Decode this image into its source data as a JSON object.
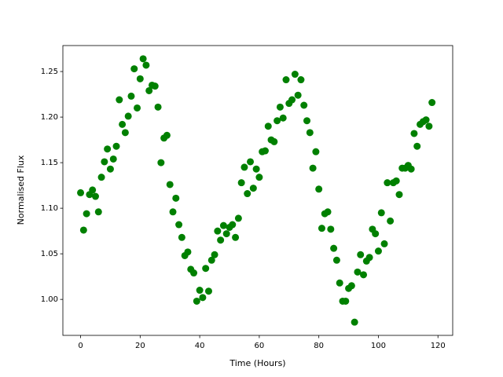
{
  "chart_data": {
    "type": "scatter",
    "xlabel": "Time (Hours)",
    "ylabel": "Normalised Flux",
    "color": "#008000",
    "x": [
      0,
      1,
      2,
      3,
      4,
      5,
      6,
      7,
      8,
      9,
      10,
      11,
      12,
      13,
      14,
      15,
      16,
      17,
      18,
      19,
      20,
      21,
      22,
      23,
      24,
      25,
      26,
      27,
      28,
      29,
      30,
      31,
      32,
      33,
      34,
      35,
      36,
      37,
      38,
      39,
      40,
      41,
      42,
      43,
      44,
      45,
      46,
      47,
      48,
      49,
      50,
      51,
      52,
      53,
      54,
      55,
      56,
      57,
      58,
      59,
      60,
      61,
      62,
      63,
      64,
      65,
      66,
      67,
      68,
      69,
      70,
      71,
      72,
      73,
      74,
      75,
      76,
      77,
      78,
      79,
      80,
      81,
      82,
      83,
      84,
      85,
      86,
      87,
      88,
      89,
      90,
      91,
      92,
      93,
      94,
      95,
      96,
      97,
      98,
      99,
      100,
      101,
      102,
      103,
      104,
      105,
      106,
      107,
      108,
      109,
      110,
      111,
      112,
      113,
      114,
      115,
      116,
      117,
      118
    ],
    "values": [
      1.117,
      1.076,
      1.094,
      1.115,
      1.12,
      1.113,
      1.096,
      1.134,
      1.151,
      1.165,
      1.143,
      1.154,
      1.168,
      1.219,
      1.192,
      1.183,
      1.201,
      1.223,
      1.253,
      1.21,
      1.242,
      1.264,
      1.257,
      1.229,
      1.235,
      1.234,
      1.211,
      1.15,
      1.177,
      1.18,
      1.126,
      1.096,
      1.111,
      1.082,
      1.068,
      1.048,
      1.052,
      1.033,
      1.029,
      0.998,
      1.01,
      1.002,
      1.034,
      1.009,
      1.043,
      1.049,
      1.075,
      1.065,
      1.081,
      1.072,
      1.079,
      1.082,
      1.068,
      1.089,
      1.128,
      1.145,
      1.116,
      1.151,
      1.122,
      1.143,
      1.134,
      1.162,
      1.163,
      1.19,
      1.175,
      1.173,
      1.196,
      1.211,
      1.199,
      1.241,
      1.215,
      1.219,
      1.247,
      1.224,
      1.241,
      1.213,
      1.196,
      1.183,
      1.144,
      1.162,
      1.121,
      1.078,
      1.094,
      1.096,
      1.077,
      1.056,
      1.043,
      1.018,
      0.998,
      0.998,
      1.012,
      1.015,
      0.975,
      1.03,
      1.049,
      1.027,
      1.042,
      1.046,
      1.077,
      1.072,
      1.053,
      1.095,
      1.061,
      1.128,
      1.086,
      1.128,
      1.13,
      1.115,
      1.144,
      1.144,
      1.147,
      1.143,
      1.182,
      1.168,
      1.192,
      1.195,
      1.197,
      1.19,
      1.216
    ],
    "xlim": [
      -5.95,
      124.95
    ],
    "ylim": [
      0.9605,
      1.2785
    ],
    "xticks": [
      0,
      20,
      40,
      60,
      80,
      100,
      120
    ],
    "yticks": [
      {
        "value": 1.0,
        "label": "1.00"
      },
      {
        "value": 1.05,
        "label": "1.05"
      },
      {
        "value": 1.1,
        "label": "1.10"
      },
      {
        "value": 1.15,
        "label": "1.15"
      },
      {
        "value": 1.2,
        "label": "1.20"
      },
      {
        "value": 1.25,
        "label": "1.25"
      }
    ]
  }
}
